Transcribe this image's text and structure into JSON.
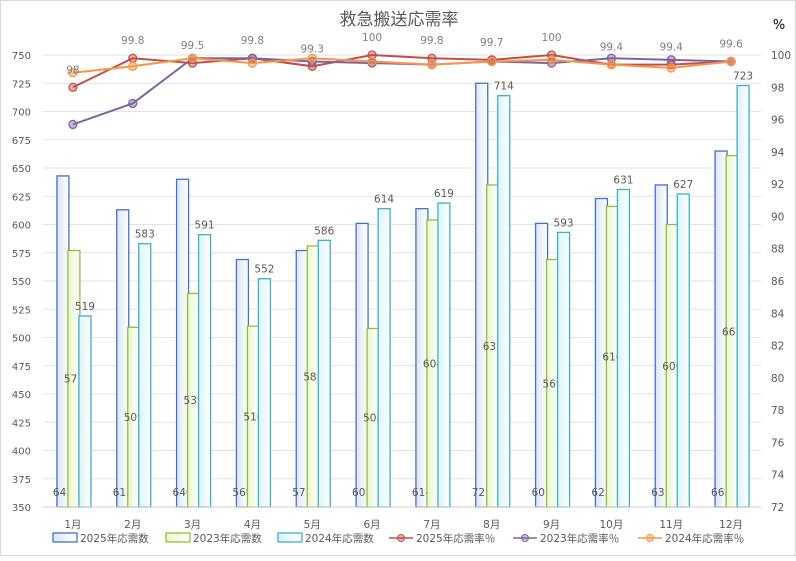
{
  "chart_data": {
    "type": "bar+line",
    "title": "救急搬送応需率",
    "y2label": "%",
    "categories": [
      "1月",
      "2月",
      "3月",
      "4月",
      "5月",
      "6月",
      "7月",
      "8月",
      "9月",
      "10月",
      "11月",
      "12月"
    ],
    "ylim": [
      350,
      750
    ],
    "yticks": [
      350,
      375,
      400,
      425,
      450,
      475,
      500,
      525,
      550,
      575,
      600,
      625,
      650,
      675,
      700,
      725,
      750
    ],
    "y2lim": [
      72,
      100
    ],
    "y2ticks": [
      72,
      74,
      76,
      78,
      80,
      82,
      84,
      86,
      88,
      90,
      92,
      94,
      96,
      98,
      100
    ],
    "grid": true,
    "legend": "bottom",
    "bar_series": [
      {
        "name": "2025年応需数",
        "color": "#4472c4",
        "fill": "#dbe6fa",
        "values": [
          643,
          613,
          640,
          569,
          577,
          601,
          614,
          725,
          601,
          623,
          635,
          665
        ],
        "label_pos": "base"
      },
      {
        "name": "2023年応需数",
        "color": "#8fbf3f",
        "fill": "#eaf7cc",
        "values": [
          577,
          509,
          539,
          510,
          581,
          508,
          604,
          635,
          569,
          616,
          600,
          661
        ],
        "label_pos": "center"
      },
      {
        "name": "2024年応需数",
        "color": "#3fb0c8",
        "fill": "#d9f5fa",
        "values": [
          519,
          583,
          591,
          552,
          586,
          614,
          619,
          714,
          593,
          631,
          627,
          723
        ],
        "label_pos": "top"
      }
    ],
    "line_series": [
      {
        "name": "2025年応需率％",
        "color": "#c0504d",
        "values": [
          98,
          99.8,
          99.5,
          99.8,
          99.3,
          100,
          99.8,
          99.7,
          100,
          99.4,
          99.4,
          99.6
        ],
        "labels": true
      },
      {
        "name": "2023年応需率％",
        "color": "#8064a2",
        "values": [
          95.7,
          97.0,
          99.8,
          99.8,
          99.6,
          99.5,
          99.4,
          99.6,
          99.5,
          99.8,
          99.7,
          99.6
        ],
        "labels": false
      },
      {
        "name": "2024年応需率％",
        "color": "#f79646",
        "values": [
          98.9,
          99.3,
          99.8,
          99.5,
          99.8,
          99.6,
          99.4,
          99.6,
          99.7,
          99.4,
          99.2,
          99.6
        ],
        "labels": false
      }
    ]
  }
}
